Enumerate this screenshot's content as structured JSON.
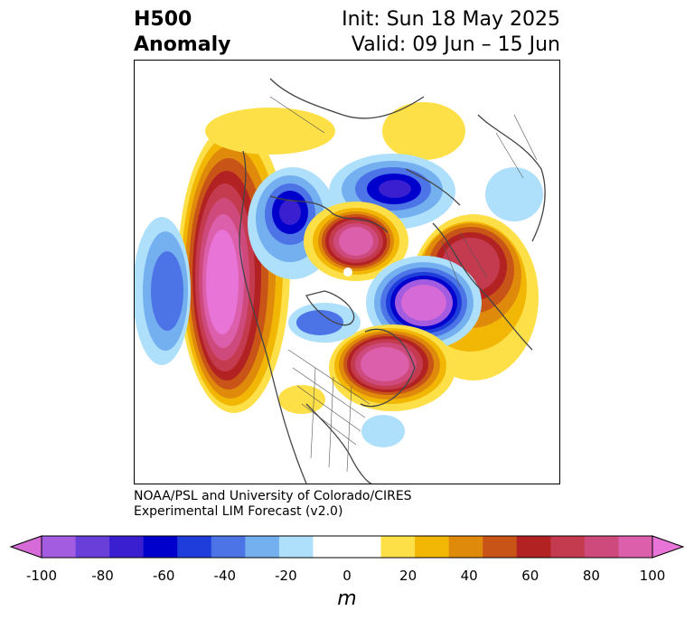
{
  "header": {
    "variable": "H500",
    "field": "Anomaly",
    "init": "Init: Sun 18 May 2025",
    "valid": "Valid: 09 Jun – 15 Jun"
  },
  "credit": {
    "line1": "NOAA/PSL and University of Colorado/CIRES",
    "line2": "Experimental LIM Forecast (v2.0)"
  },
  "map": {
    "projection": "north-polar-stereographic",
    "region": "Northern Hemisphere / North America",
    "features": [
      "coastlines",
      "country-borders",
      "state-borders"
    ]
  },
  "colorbar": {
    "unit": "m",
    "ticks": [
      "-100",
      "-80",
      "-60",
      "-40",
      "-20",
      "0",
      "20",
      "40",
      "60",
      "80",
      "100"
    ],
    "extend": "both",
    "colors": [
      "#d66ad6",
      "#a35ce0",
      "#6a3fd9",
      "#3a1fd0",
      "#0000cc",
      "#1e3ddb",
      "#4d74e6",
      "#74aff0",
      "#aee0fb",
      "#ffffff",
      "#ffffff",
      "#fde047",
      "#f2b705",
      "#e08a0c",
      "#c85417",
      "#b22222",
      "#c43a4e",
      "#cf4a7c",
      "#dc5fab",
      "#e874d8"
    ]
  }
}
